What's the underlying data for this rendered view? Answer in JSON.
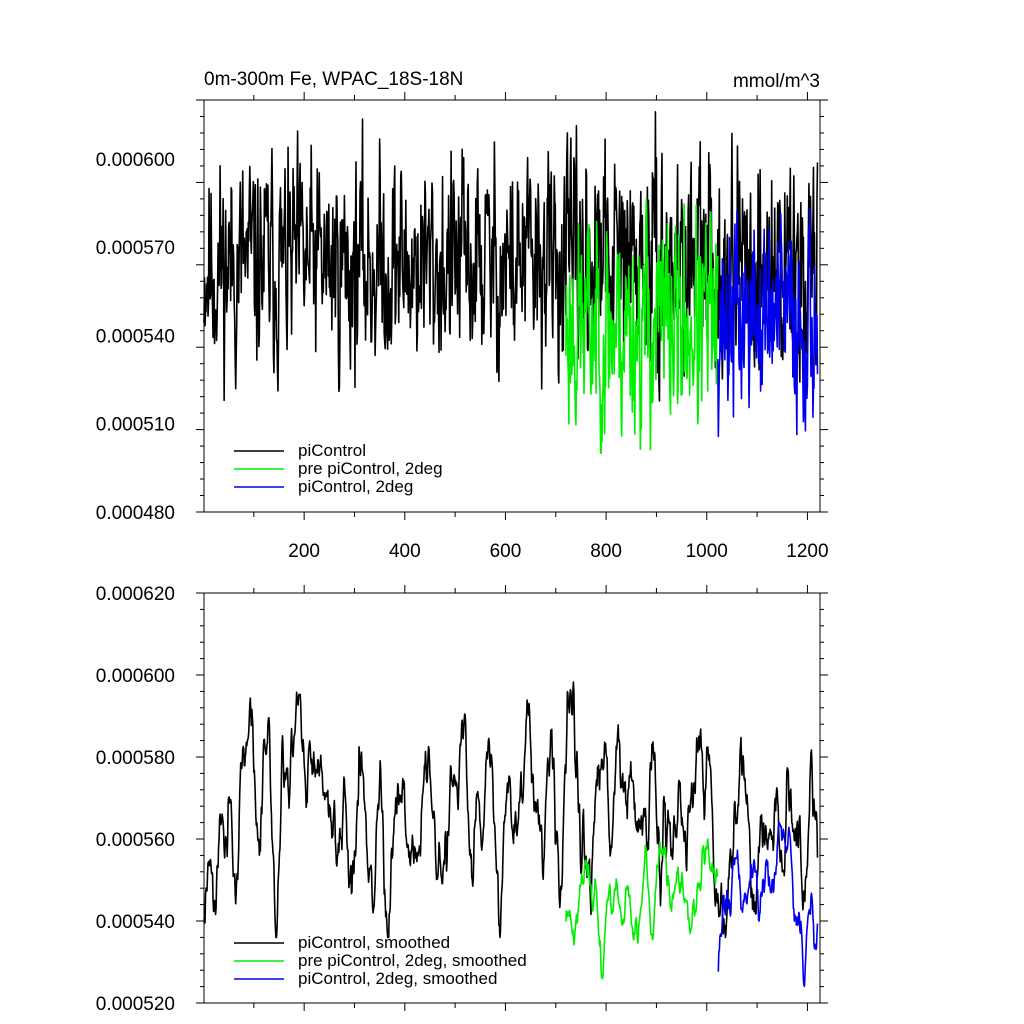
{
  "chart_data": [
    {
      "type": "line",
      "title": "0m-300m Fe, WPAC_18S-18N",
      "units": "mmol/m^3",
      "xlim": [
        1,
        1225
      ],
      "ylim": [
        0.00048,
        0.00062
      ],
      "x_ticks": [
        200,
        400,
        600,
        800,
        1000,
        1200
      ],
      "y_ticks": [
        "0.000480",
        "0.000510",
        "0.000540",
        "0.000570",
        "0.000600"
      ],
      "legend_position": "bottom-left",
      "series": [
        {
          "name": "piControl",
          "color": "#000000",
          "x_range": [
            1,
            1220
          ],
          "mean": 0.000565,
          "min": 0.000517,
          "max": 0.000616,
          "seed": 11
        },
        {
          "name": "pre piControl, 2deg",
          "color": "#00ee00",
          "x_range": [
            720,
            1022
          ],
          "mean": 0.000543,
          "min": 0.0005,
          "max": 0.000596,
          "seed": 23
        },
        {
          "name": "piControl, 2deg",
          "color": "#0000ee",
          "x_range": [
            1022,
            1220
          ],
          "mean": 0.000545,
          "min": 0.000505,
          "max": 0.000583,
          "seed": 37
        }
      ]
    },
    {
      "type": "line",
      "title": "",
      "units": "",
      "xlim": [
        1,
        1225
      ],
      "ylim": [
        0.00052,
        0.00062
      ],
      "x_ticks": [
        200,
        400,
        600,
        800,
        1000,
        1200
      ],
      "y_ticks": [
        "0.000520",
        "0.000540",
        "0.000560",
        "0.000580",
        "0.000600",
        "0.000620"
      ],
      "legend_position": "bottom-left",
      "series": [
        {
          "name": "piControl, smoothed",
          "color": "#000000",
          "x_range": [
            1,
            1220
          ],
          "mean": 0.000566,
          "min": 0.000536,
          "max": 0.000603,
          "seed": 11,
          "smooth": 7
        },
        {
          "name": "pre piControl, 2deg, smoothed",
          "color": "#00ee00",
          "x_range": [
            720,
            1022
          ],
          "mean": 0.000546,
          "min": 0.000526,
          "max": 0.000562,
          "seed": 23,
          "smooth": 7
        },
        {
          "name": "piControl, 2deg, smoothed",
          "color": "#0000ee",
          "x_range": [
            1022,
            1220
          ],
          "mean": 0.000547,
          "min": 0.000524,
          "max": 0.000564,
          "seed": 37,
          "smooth": 7
        }
      ]
    }
  ]
}
